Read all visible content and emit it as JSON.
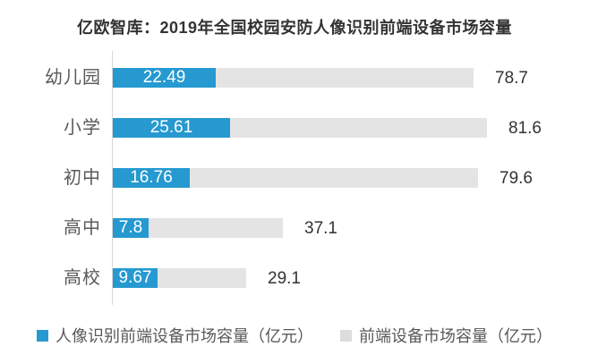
{
  "title": "亿欧智库：2019年全国校园安防人像识别前端设备市场容量",
  "colors": {
    "series_blue": "#2699d0",
    "series_gray": "#e4e4e4",
    "legend_gray_swatch": "#dddddd",
    "axis_line": "#d8d8d8",
    "title_text": "#333333",
    "category_text": "#595959",
    "value_inside_text": "#ffffff",
    "value_outside_text": "#333333",
    "legend_text": "#595959",
    "background": "#ffffff"
  },
  "legend": {
    "items": [
      {
        "label": "人像识别前端设备市场容量（亿元）",
        "series": "face_recognition"
      },
      {
        "label": "前端设备市场容量（亿元）",
        "series": "front_end_total"
      }
    ]
  },
  "chart_data": {
    "type": "bar",
    "orientation": "horizontal",
    "title": "亿欧智库：2019年全国校园安防人像识别前端设备市场容量",
    "categories": [
      "幼儿园",
      "小学",
      "初中",
      "高中",
      "高校"
    ],
    "series": [
      {
        "name": "人像识别前端设备市场容量（亿元）",
        "color": "#2699d0",
        "values": [
          22.49,
          25.61,
          16.76,
          7.8,
          9.67
        ]
      },
      {
        "name": "前端设备市场容量（亿元）",
        "color": "#e4e4e4",
        "values": [
          78.7,
          81.6,
          79.6,
          37.1,
          29.1
        ]
      }
    ],
    "value_labels": {
      "series_0_position": "inside-center",
      "series_1_position": "outside-right"
    },
    "xlabel": "",
    "ylabel": "",
    "xlim": [
      0,
      102
    ],
    "value_axis_visible": false,
    "grid": false,
    "legend_position": "bottom"
  }
}
